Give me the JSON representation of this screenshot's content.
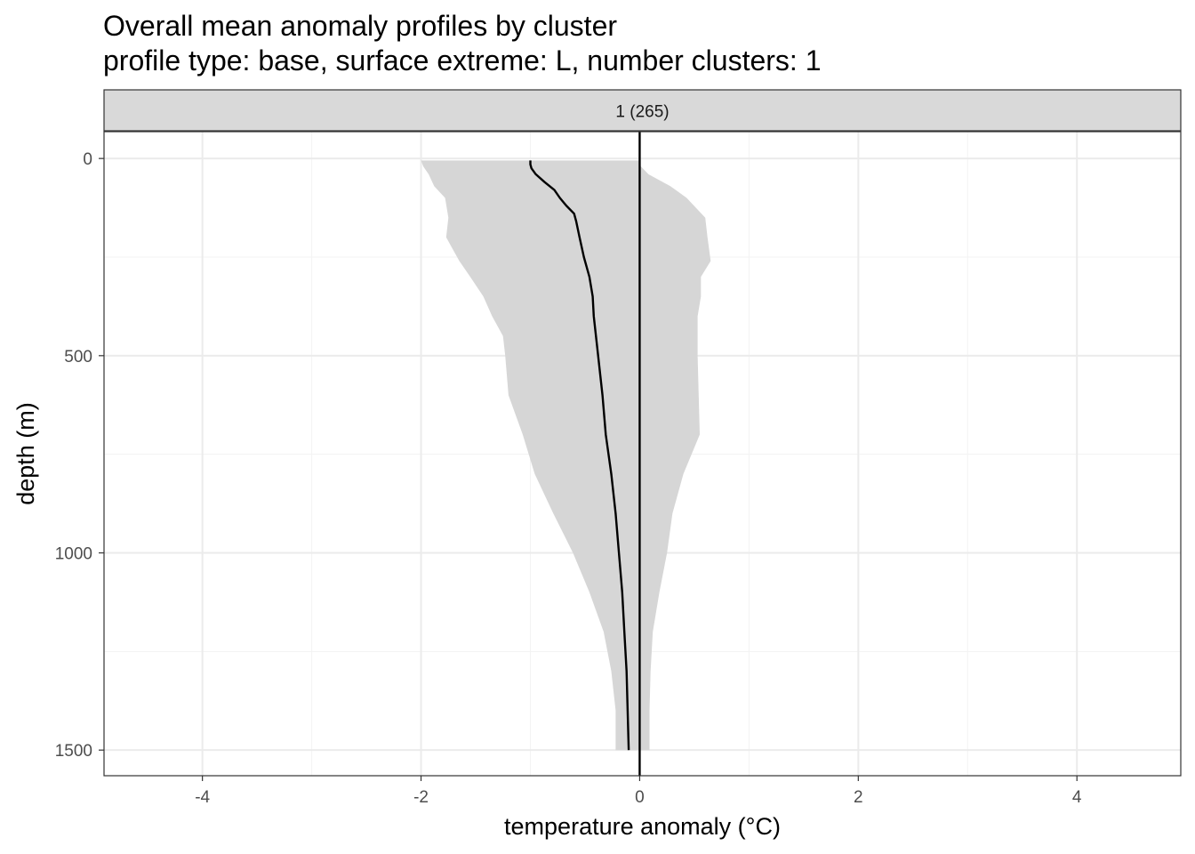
{
  "chart_data": {
    "type": "area",
    "title": "Overall mean anomaly profiles by cluster",
    "subtitle": "profile type: base, surface extreme: L, number clusters: 1",
    "xlabel": "temperature anomaly (°C)",
    "ylabel": "depth (m)",
    "xlim": [
      -4.9,
      4.95
    ],
    "ylim": [
      1565,
      -68
    ],
    "y_reversed": true,
    "x_ticks": [
      -4,
      -2,
      0,
      2,
      4
    ],
    "x_tick_labels": [
      "-4",
      "-2",
      "0",
      "2",
      "4"
    ],
    "y_ticks": [
      0,
      500,
      1000,
      1500
    ],
    "y_tick_labels": [
      "0",
      "500",
      "1000",
      "1500"
    ],
    "grid": true,
    "facet_label": "1 (265)",
    "reference_line_x": 0,
    "series": [
      {
        "role": "band",
        "depth": [
          5,
          20,
          40,
          70,
          100,
          150,
          200,
          260,
          300,
          350,
          400,
          450,
          500,
          600,
          700,
          800,
          900,
          1000,
          1100,
          1200,
          1300,
          1400,
          1500
        ],
        "lower": [
          -2.0,
          -1.98,
          -1.93,
          -1.88,
          -1.78,
          -1.75,
          -1.77,
          -1.65,
          -1.55,
          -1.43,
          -1.35,
          -1.25,
          -1.23,
          -1.2,
          -1.07,
          -0.96,
          -0.79,
          -0.61,
          -0.46,
          -0.33,
          -0.26,
          -0.22,
          -0.22
        ],
        "upper": [
          0.0,
          0.01,
          0.08,
          0.28,
          0.43,
          0.6,
          0.62,
          0.65,
          0.56,
          0.56,
          0.53,
          0.53,
          0.53,
          0.54,
          0.55,
          0.4,
          0.3,
          0.25,
          0.18,
          0.12,
          0.1,
          0.09,
          0.09
        ]
      },
      {
        "role": "mean",
        "depth": [
          5,
          15,
          25,
          40,
          60,
          80,
          100,
          120,
          140,
          160,
          200,
          250,
          300,
          350,
          400,
          500,
          600,
          700,
          800,
          900,
          1000,
          1100,
          1200,
          1300,
          1400,
          1500
        ],
        "values": [
          -1.0,
          -1.0,
          -0.99,
          -0.95,
          -0.87,
          -0.78,
          -0.73,
          -0.67,
          -0.6,
          -0.58,
          -0.55,
          -0.51,
          -0.46,
          -0.43,
          -0.42,
          -0.38,
          -0.34,
          -0.31,
          -0.26,
          -0.22,
          -0.19,
          -0.16,
          -0.14,
          -0.12,
          -0.11,
          -0.1
        ]
      }
    ],
    "colors": {
      "band": "#d6d6d6",
      "line": "#000000",
      "grid_major": "#ebebeb",
      "grid_minor": "#f3f3f3",
      "strip_fill": "#d9d9d9",
      "border": "#333333"
    }
  }
}
